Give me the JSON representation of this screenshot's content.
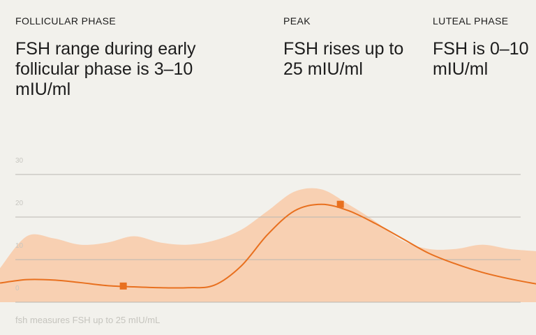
{
  "phases": [
    {
      "label": "FOLLICULAR PHASE",
      "desc": "FSH range during early follicular phase is 3–10 mIU/ml"
    },
    {
      "label": "PEAK",
      "desc": "FSH rises up to 25 mIU/ml"
    },
    {
      "label": "LUTEAL PHASE",
      "desc": "FSH is 0–10 mIU/ml"
    }
  ],
  "footer": "fsh measures FSH up to 25 mIU/mL",
  "colors": {
    "band": "#f8d0b2",
    "line": "#e8701f",
    "marker": "#e8701f",
    "grid": "#b9b8b2",
    "background": "#f2f1ec"
  },
  "chart_data": {
    "type": "area",
    "title": "",
    "xlabel": "",
    "ylabel": "",
    "ylim": [
      0,
      30
    ],
    "yticks": [
      0,
      10,
      20,
      30
    ],
    "grid": true,
    "series": [
      {
        "kind": "line",
        "x": [
          0,
          5,
          10,
          15,
          20,
          25,
          30,
          35,
          40,
          45,
          50,
          55,
          60,
          65,
          70,
          75,
          80,
          85,
          90,
          95,
          100
        ],
        "values": [
          4.5,
          5.3,
          5.2,
          4.6,
          3.9,
          3.6,
          3.4,
          3.4,
          4,
          8.5,
          16,
          21.5,
          23,
          21.5,
          18.5,
          15,
          11.5,
          9,
          7,
          5.5,
          4.3
        ]
      },
      {
        "kind": "band",
        "x": [
          0,
          5,
          10,
          15,
          20,
          25,
          30,
          35,
          40,
          45,
          50,
          55,
          60,
          65,
          70,
          75,
          80,
          85,
          90,
          95,
          100
        ],
        "lower": [
          0,
          0,
          0,
          0,
          0,
          0,
          0,
          0,
          0,
          0,
          0,
          0,
          0,
          0,
          0,
          0,
          0,
          0,
          0,
          0,
          0
        ],
        "upper": [
          8,
          15.5,
          15,
          13.5,
          14,
          15.5,
          14,
          13.5,
          14.5,
          17,
          21.5,
          26,
          26.5,
          23,
          19,
          14.5,
          12.5,
          12.5,
          13.5,
          12.5,
          12
        ]
      }
    ],
    "markers": [
      {
        "x": 23,
        "y": 3.8
      },
      {
        "x": 63.5,
        "y": 23
      }
    ]
  }
}
